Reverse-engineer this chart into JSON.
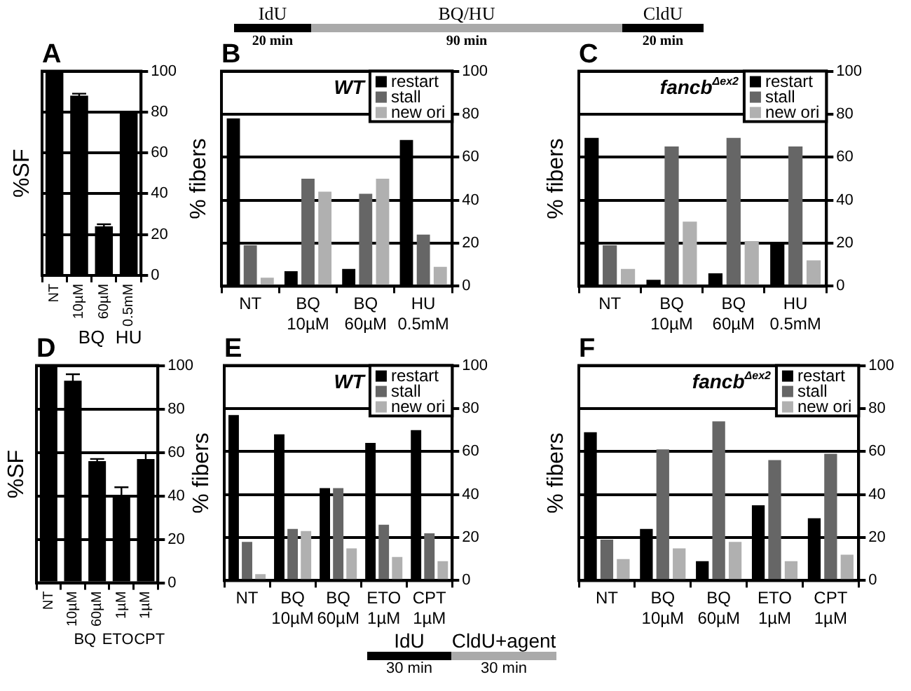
{
  "chart_data": [
    {
      "type": "other",
      "annotations": [
        "IdU",
        "20 min",
        "BQ/HU",
        "90 min",
        "CldU",
        "20 min"
      ]
    },
    {
      "type": "bar",
      "title": "A",
      "ylabel": "%SF",
      "categories": [
        "NT",
        "10µM",
        "60µM",
        "0.5mM"
      ],
      "values": [
        100,
        88,
        24,
        80
      ],
      "errors": [
        null,
        1,
        1,
        null
      ],
      "color": "#000000",
      "ylim": [
        0,
        100
      ],
      "yticks": [
        0,
        20,
        40,
        60,
        80,
        100
      ],
      "grid": "y",
      "annotations": [
        "BQ",
        "HU"
      ]
    },
    {
      "type": "bar",
      "title": "B",
      "ylabel": "% fibers",
      "categories": [
        "NT",
        "BQ 10µM",
        "BQ 60µM",
        "HU 0.5mM"
      ],
      "series": [
        {
          "name": "restart",
          "color": "#000000",
          "values": [
            78,
            7,
            8,
            68
          ]
        },
        {
          "name": "stall",
          "color": "#666666",
          "values": [
            19,
            50,
            43,
            24
          ]
        },
        {
          "name": "new ori",
          "color": "#b0b0b0",
          "values": [
            4,
            44,
            50,
            9
          ]
        }
      ],
      "ylim": [
        0,
        100
      ],
      "yticks": [
        0,
        20,
        40,
        60,
        80,
        100
      ],
      "grid": "y",
      "legend": "top right",
      "annotations": [
        "WT"
      ]
    },
    {
      "type": "bar",
      "title": "C",
      "ylabel": "% fibers",
      "categories": [
        "NT",
        "BQ 10µM",
        "BQ 60µM",
        "HU 0.5mM"
      ],
      "series": [
        {
          "name": "restart",
          "color": "#000000",
          "values": [
            69,
            3,
            6,
            20
          ]
        },
        {
          "name": "stall",
          "color": "#666666",
          "values": [
            19,
            65,
            69,
            65
          ]
        },
        {
          "name": "new ori",
          "color": "#b0b0b0",
          "values": [
            8,
            30,
            21,
            12
          ]
        }
      ],
      "ylim": [
        0,
        100
      ],
      "yticks": [
        0,
        20,
        40,
        60,
        80,
        100
      ],
      "grid": "y",
      "legend": "top right",
      "annotations": [
        "fancb$^{Δex2}$"
      ]
    },
    {
      "type": "bar",
      "title": "D",
      "ylabel": "%SF",
      "categories": [
        "NT",
        "10µM",
        "60µM",
        "1µM",
        "1µM"
      ],
      "values": [
        100,
        93,
        56,
        40,
        57
      ],
      "errors": [
        null,
        3,
        1,
        4,
        3
      ],
      "color": "#000000",
      "ylim": [
        0,
        100
      ],
      "yticks": [
        0,
        20,
        40,
        60,
        80,
        100
      ],
      "grid": "y",
      "annotations": [
        "BQ",
        "ETO",
        "CPT"
      ]
    },
    {
      "type": "bar",
      "title": "E",
      "ylabel": "% fibers",
      "categories": [
        "NT",
        "BQ 10µM",
        "BQ 60µM",
        "ETO 1µM",
        "CPT 1µM"
      ],
      "series": [
        {
          "name": "restart",
          "color": "#000000",
          "values": [
            77,
            68,
            43,
            64,
            70
          ]
        },
        {
          "name": "stall",
          "color": "#666666",
          "values": [
            18,
            24,
            43,
            26,
            22
          ]
        },
        {
          "name": "new ori",
          "color": "#b0b0b0",
          "values": [
            3,
            23,
            15,
            11,
            9
          ]
        }
      ],
      "ylim": [
        0,
        100
      ],
      "yticks": [
        0,
        20,
        40,
        60,
        80,
        100
      ],
      "grid": "y",
      "legend": "top right",
      "annotations": [
        "WT"
      ]
    },
    {
      "type": "bar",
      "title": "F",
      "ylabel": "% fibers",
      "categories": [
        "NT",
        "BQ 10µM",
        "BQ 60µM",
        "ETO 1µM",
        "CPT 1µM"
      ],
      "series": [
        {
          "name": "restart",
          "color": "#000000",
          "values": [
            69,
            24,
            9,
            35,
            29
          ]
        },
        {
          "name": "stall",
          "color": "#666666",
          "values": [
            19,
            61,
            74,
            56,
            59
          ]
        },
        {
          "name": "new ori",
          "color": "#b0b0b0",
          "values": [
            10,
            15,
            18,
            9,
            12
          ]
        }
      ],
      "ylim": [
        0,
        100
      ],
      "yticks": [
        0,
        20,
        40,
        60,
        80,
        100
      ],
      "grid": "y",
      "legend": "top right",
      "annotations": [
        "fancb$^{Δex2}$"
      ]
    },
    {
      "type": "other",
      "annotations": [
        "IdU",
        "30 min",
        "CldU+agent",
        "30 min"
      ]
    }
  ]
}
